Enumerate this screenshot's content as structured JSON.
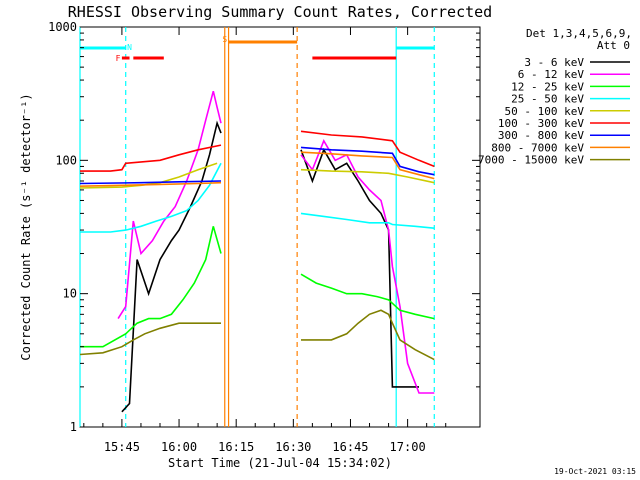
{
  "chart_data": {
    "type": "line",
    "title": "RHESSI Observing Summary Count Rates, Corrected",
    "xlabel": "Start Time (21-Jul-04 15:34:02)",
    "ylabel": "Corrected Count Rate (s⁻¹ detector⁻¹)",
    "y_scale": "log",
    "ylim": [
      1,
      1000
    ],
    "xlim": [
      "15:34",
      "17:19"
    ],
    "x_ticks": [
      "15:45",
      "16:00",
      "16:15",
      "16:30",
      "16:45",
      "17:00"
    ],
    "y_ticks": [
      "1",
      "10",
      "100",
      "1000"
    ],
    "legend_header": [
      "Det 1,3,4,5,6,9,",
      "Att 0"
    ],
    "legend_position": "right",
    "timestamp": "19-Oct-2021 03:15",
    "flags": [
      {
        "label": "N",
        "color": "#00ffff"
      },
      {
        "label": "F",
        "color": "#ff0000"
      },
      {
        "label": "S",
        "color": "#ff8000"
      }
    ],
    "series": [
      {
        "name": "3 - 6 keV",
        "color": "#000000",
        "points": [
          [
            "15:45",
            1.3
          ],
          [
            "15:47",
            1.5
          ],
          [
            "15:49",
            18
          ],
          [
            "15:52",
            10
          ],
          [
            "15:55",
            18
          ],
          [
            "15:58",
            25
          ],
          [
            "16:00",
            30
          ],
          [
            "16:03",
            45
          ],
          [
            "16:06",
            70
          ],
          [
            "16:08",
            110
          ],
          [
            "16:10",
            190
          ],
          [
            "16:11",
            160
          ],
          [
            "16:32",
            120
          ],
          [
            "16:35",
            70
          ],
          [
            "16:38",
            120
          ],
          [
            "16:41",
            85
          ],
          [
            "16:44",
            95
          ],
          [
            "16:47",
            70
          ],
          [
            "16:50",
            50
          ],
          [
            "16:53",
            40
          ],
          [
            "16:55",
            30
          ],
          [
            "16:56",
            2
          ],
          [
            "17:03",
            2
          ]
        ]
      },
      {
        "name": "6 - 12 keV",
        "color": "#ff00ff",
        "points": [
          [
            "15:44",
            6.5
          ],
          [
            "15:46",
            8
          ],
          [
            "15:48",
            35
          ],
          [
            "15:50",
            20
          ],
          [
            "15:53",
            25
          ],
          [
            "15:56",
            35
          ],
          [
            "15:59",
            45
          ],
          [
            "16:02",
            70
          ],
          [
            "16:05",
            120
          ],
          [
            "16:07",
            200
          ],
          [
            "16:09",
            330
          ],
          [
            "16:10",
            250
          ],
          [
            "16:11",
            190
          ],
          [
            "16:32",
            110
          ],
          [
            "16:35",
            85
          ],
          [
            "16:38",
            140
          ],
          [
            "16:41",
            100
          ],
          [
            "16:44",
            110
          ],
          [
            "16:47",
            75
          ],
          [
            "16:50",
            60
          ],
          [
            "16:53",
            50
          ],
          [
            "16:55",
            30
          ],
          [
            "16:56",
            16
          ],
          [
            "16:58",
            8
          ],
          [
            "17:00",
            3
          ],
          [
            "17:03",
            1.8
          ],
          [
            "17:07",
            1.8
          ]
        ]
      },
      {
        "name": "12 - 25 keV",
        "color": "#00ff00",
        "points": [
          [
            "15:34",
            4
          ],
          [
            "15:40",
            4
          ],
          [
            "15:46",
            5
          ],
          [
            "15:49",
            6
          ],
          [
            "15:52",
            6.5
          ],
          [
            "15:55",
            6.5
          ],
          [
            "15:58",
            7
          ],
          [
            "16:01",
            9
          ],
          [
            "16:04",
            12
          ],
          [
            "16:07",
            18
          ],
          [
            "16:09",
            32
          ],
          [
            "16:11",
            20
          ],
          [
            "16:32",
            14
          ],
          [
            "16:36",
            12
          ],
          [
            "16:40",
            11
          ],
          [
            "16:44",
            10
          ],
          [
            "16:48",
            10
          ],
          [
            "16:52",
            9.5
          ],
          [
            "16:55",
            9
          ],
          [
            "16:58",
            7.5
          ],
          [
            "17:02",
            7
          ],
          [
            "17:07",
            6.5
          ]
        ]
      },
      {
        "name": "25 - 50 keV",
        "color": "#00ffff",
        "points": [
          [
            "15:34",
            29
          ],
          [
            "15:42",
            29
          ],
          [
            "15:46",
            30
          ],
          [
            "15:50",
            32
          ],
          [
            "15:54",
            35
          ],
          [
            "15:58",
            38
          ],
          [
            "16:02",
            42
          ],
          [
            "16:05",
            50
          ],
          [
            "16:08",
            65
          ],
          [
            "16:11",
            95
          ],
          [
            "16:32",
            40
          ],
          [
            "16:38",
            38
          ],
          [
            "16:44",
            36
          ],
          [
            "16:50",
            34
          ],
          [
            "16:55",
            34
          ],
          [
            "16:56",
            33
          ],
          [
            "17:02",
            32
          ],
          [
            "17:07",
            31
          ]
        ]
      },
      {
        "name": "50 - 100 keV",
        "color": "#cccc00",
        "points": [
          [
            "15:34",
            62
          ],
          [
            "15:45",
            63
          ],
          [
            "15:50",
            65
          ],
          [
            "15:55",
            68
          ],
          [
            "16:00",
            75
          ],
          [
            "16:05",
            85
          ],
          [
            "16:10",
            95
          ],
          [
            "16:32",
            85
          ],
          [
            "16:40",
            83
          ],
          [
            "16:48",
            82
          ],
          [
            "16:55",
            80
          ],
          [
            "17:00",
            75
          ],
          [
            "17:07",
            68
          ]
        ]
      },
      {
        "name": "100 - 300 keV",
        "color": "#ff0000",
        "points": [
          [
            "15:34",
            83
          ],
          [
            "15:42",
            83
          ],
          [
            "15:45",
            85
          ],
          [
            "15:46",
            95
          ],
          [
            "15:55",
            100
          ],
          [
            "16:00",
            110
          ],
          [
            "16:05",
            120
          ],
          [
            "16:11",
            130
          ],
          [
            "16:32",
            165
          ],
          [
            "16:40",
            155
          ],
          [
            "16:48",
            150
          ],
          [
            "16:56",
            140
          ],
          [
            "16:58",
            115
          ],
          [
            "17:03",
            100
          ],
          [
            "17:07",
            90
          ]
        ]
      },
      {
        "name": "300 - 800 keV",
        "color": "#0000ff",
        "points": [
          [
            "15:34",
            67
          ],
          [
            "15:50",
            68
          ],
          [
            "16:00",
            69
          ],
          [
            "16:11",
            70
          ],
          [
            "16:32",
            125
          ],
          [
            "16:40",
            120
          ],
          [
            "16:48",
            117
          ],
          [
            "16:56",
            113
          ],
          [
            "16:58",
            90
          ],
          [
            "17:03",
            82
          ],
          [
            "17:07",
            78
          ]
        ]
      },
      {
        "name": "800 - 7000 keV",
        "color": "#ff8000",
        "points": [
          [
            "15:34",
            64
          ],
          [
            "15:45",
            65
          ],
          [
            "15:55",
            66
          ],
          [
            "16:05",
            67
          ],
          [
            "16:11",
            68
          ],
          [
            "16:32",
            115
          ],
          [
            "16:40",
            112
          ],
          [
            "16:48",
            108
          ],
          [
            "16:56",
            105
          ],
          [
            "16:58",
            85
          ],
          [
            "17:03",
            78
          ],
          [
            "17:07",
            73
          ]
        ]
      },
      {
        "name": "7000 - 15000 keV",
        "color": "#808000",
        "points": [
          [
            "15:34",
            3.5
          ],
          [
            "15:40",
            3.6
          ],
          [
            "15:45",
            4
          ],
          [
            "15:48",
            4.5
          ],
          [
            "15:51",
            5
          ],
          [
            "15:55",
            5.5
          ],
          [
            "16:00",
            6
          ],
          [
            "16:05",
            6
          ],
          [
            "16:11",
            6
          ],
          [
            "16:32",
            4.5
          ],
          [
            "16:36",
            4.5
          ],
          [
            "16:40",
            4.5
          ],
          [
            "16:44",
            5
          ],
          [
            "16:47",
            6
          ],
          [
            "16:50",
            7
          ],
          [
            "16:53",
            7.5
          ],
          [
            "16:55",
            7
          ],
          [
            "16:56",
            6
          ],
          [
            "16:58",
            4.5
          ],
          [
            "17:02",
            3.8
          ],
          [
            "17:07",
            3.2
          ]
        ]
      }
    ]
  }
}
